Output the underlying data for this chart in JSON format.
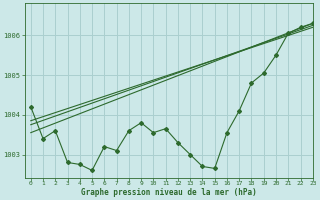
{
  "title": "Graphe pression niveau de la mer (hPa)",
  "bg_color": "#cce8e8",
  "grid_color": "#aacfcf",
  "line_color": "#2d6a2d",
  "xlim": [
    -0.5,
    23
  ],
  "ylim": [
    1002.4,
    1006.8
  ],
  "yticks": [
    1003,
    1004,
    1005,
    1006
  ],
  "xticks": [
    0,
    1,
    2,
    3,
    4,
    5,
    6,
    7,
    8,
    9,
    10,
    11,
    12,
    13,
    14,
    15,
    16,
    17,
    18,
    19,
    20,
    21,
    22,
    23
  ],
  "series1": [
    1004.2,
    1003.4,
    1003.6,
    1002.8,
    1002.75,
    1002.6,
    1003.2,
    1003.1,
    1003.6,
    1003.8,
    1003.55,
    1003.65,
    1003.3,
    1003.0,
    1002.7,
    1002.65,
    1003.55,
    1004.1,
    1004.8,
    1005.05,
    1005.5,
    1006.05,
    1006.2,
    1006.3
  ],
  "trend1_x": [
    0,
    23
  ],
  "trend1_y": [
    1003.55,
    1006.3
  ],
  "trend2_x": [
    0,
    23
  ],
  "trend2_y": [
    1003.75,
    1006.25
  ],
  "trend3_x": [
    0,
    23
  ],
  "trend3_y": [
    1003.85,
    1006.2
  ]
}
